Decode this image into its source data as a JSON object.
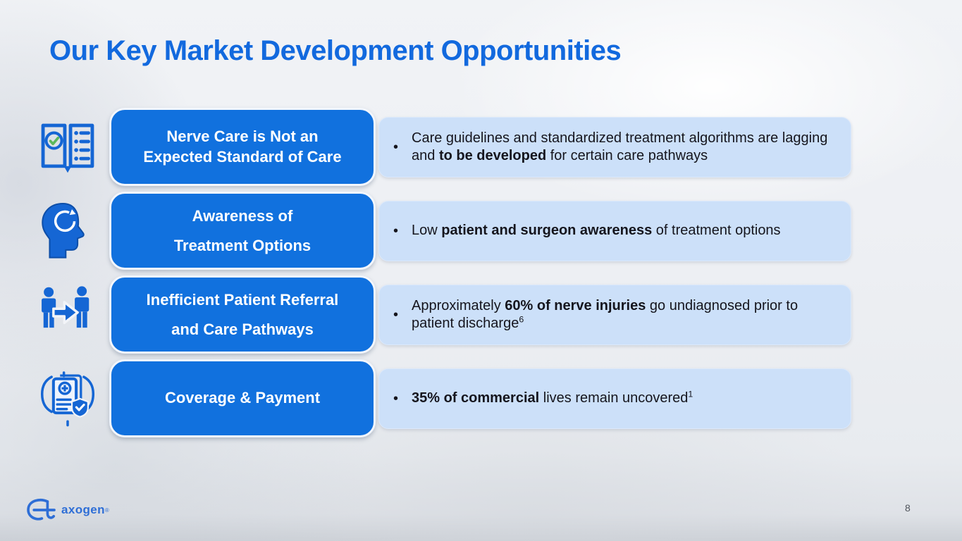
{
  "slide": {
    "title": "Our Key Market Development Opportunities"
  },
  "footer": {
    "logo_text": "axogen",
    "logo_reg": "®",
    "page_number": "8"
  },
  "colors": {
    "title_blue": "#1269DE",
    "label_box_blue": "#1171DE",
    "detail_box_light_blue": "#CCE0F9",
    "icon_blue": "#1566D4",
    "logo_blue": "#2E6ED6",
    "body_text": "#15151d"
  },
  "bullet_marker": "•",
  "rows": [
    {
      "icon": "book-standards-icon",
      "label_lines": [
        "Nerve Care is Not an",
        "Expected Standard of Care"
      ],
      "bullet": [
        {
          "text": "Care guidelines and standardized treatment algorithms are lagging and "
        },
        {
          "text": "to be developed",
          "bold": true
        },
        {
          "text": " for certain care pathways"
        }
      ]
    },
    {
      "icon": "head-awareness-icon",
      "label_lines": [
        "Awareness of",
        "Treatment Options"
      ],
      "bullet": [
        {
          "text": "Low "
        },
        {
          "text": "patient and surgeon awareness",
          "bold": true
        },
        {
          "text": " of treatment options"
        }
      ]
    },
    {
      "icon": "patient-referral-icon",
      "label_lines": [
        "Inefficient Patient Referral",
        "and Care Pathways"
      ],
      "bullet": [
        {
          "text": "Approximately "
        },
        {
          "text": "60% of nerve injuries",
          "bold": true
        },
        {
          "text": " go undiagnosed prior to patient discharge"
        },
        {
          "text": "6",
          "sup": true
        }
      ]
    },
    {
      "icon": "coverage-payment-icon",
      "label_lines": [
        "Coverage & Payment"
      ],
      "bullet": [
        {
          "text": "35% of commercial",
          "bold": true
        },
        {
          "text": " lives remain uncovered"
        },
        {
          "text": "1",
          "sup": true
        }
      ]
    }
  ]
}
